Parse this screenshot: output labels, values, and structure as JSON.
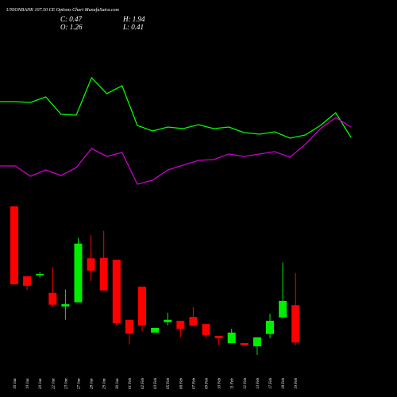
{
  "chart_data": [
    {
      "type": "candlestick",
      "title": "UNIONBANK 107.50 CE Options Chart MunafaSutra.com",
      "info": {
        "close": "C: 0.47",
        "high": "H: 1.94",
        "open": "O: 1.26",
        "low": "L: 0.41"
      },
      "categories": [
        "16 Jan",
        "19 Jan",
        "20 Jan",
        "22 Jan",
        "23 Jan",
        "27 Jan",
        "28 Jan",
        "29 Jan",
        "30 Jan",
        "01 Feb",
        "02 Feb",
        "03 Feb",
        "05 Feb",
        "06 Feb",
        "07 Feb",
        "09 Feb",
        "10 Feb",
        "11 Feb",
        "12 Feb",
        "13 Feb",
        "17 Feb",
        "18 Feb",
        "19 Feb"
      ],
      "open": [
        3.35,
        1.87,
        1.89,
        1.52,
        1.23,
        1.32,
        2.25,
        2.26,
        2.22,
        0.95,
        1.65,
        0.68,
        0.9,
        0.93,
        1.01,
        0.86,
        0.61,
        0.46,
        0.46,
        0.39,
        0.65,
        1.0,
        1.26
      ],
      "close": [
        1.7,
        1.67,
        1.92,
        1.27,
        1.28,
        2.56,
        1.99,
        1.57,
        0.88,
        0.66,
        0.83,
        0.78,
        0.95,
        0.76,
        0.83,
        0.63,
        0.56,
        0.68,
        0.41,
        0.58,
        0.93,
        1.35,
        0.47
      ],
      "high": [
        3.35,
        1.87,
        1.96,
        2.06,
        1.59,
        2.68,
        2.74,
        2.83,
        2.22,
        0.95,
        1.65,
        0.78,
        1.1,
        0.93,
        1.22,
        0.86,
        0.61,
        0.76,
        0.46,
        0.58,
        1.08,
        2.16,
        1.94
      ],
      "low": [
        1.7,
        1.58,
        1.84,
        1.23,
        0.95,
        1.32,
        1.77,
        1.57,
        0.83,
        0.43,
        0.71,
        0.68,
        0.83,
        0.58,
        0.83,
        0.56,
        0.41,
        0.46,
        0.41,
        0.21,
        0.56,
        0.98,
        0.41
      ],
      "up_color": "#00ee00",
      "down_color": "#ff0000",
      "ylim": [
        0,
        4
      ]
    },
    {
      "type": "line",
      "x": [
        0,
        1,
        2,
        3,
        4,
        5,
        6,
        7,
        8,
        9,
        10,
        11,
        12,
        13,
        14,
        15,
        16,
        17,
        18,
        19,
        20,
        21,
        22,
        23
      ],
      "xlim": [
        0,
        23
      ],
      "ylim": [
        0,
        300
      ],
      "series": [
        {
          "color": "#00ff00",
          "values": [
            172,
            172,
            171,
            178,
            156,
            155,
            202,
            182,
            192,
            142,
            135,
            140,
            138,
            143,
            138,
            140,
            133,
            131,
            134,
            126,
            130,
            142,
            158,
            127
          ]
        },
        {
          "color": "#cc00cc",
          "values": [
            91,
            91,
            78,
            86,
            79,
            89,
            113,
            103,
            108,
            68,
            73,
            86,
            92,
            98,
            99,
            106,
            103,
            106,
            109,
            102,
            118,
            138,
            152,
            140
          ]
        }
      ]
    }
  ]
}
